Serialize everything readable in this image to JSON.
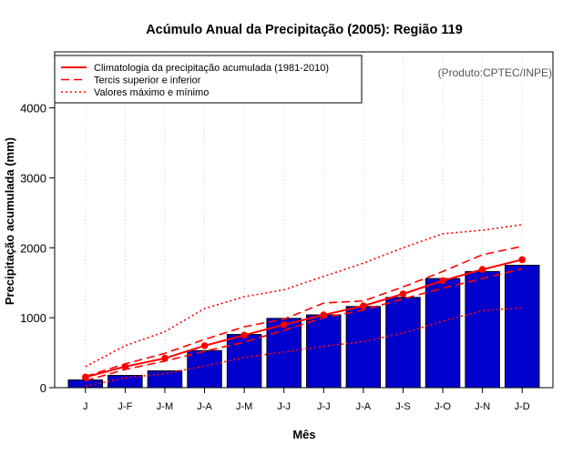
{
  "chart_data": {
    "type": "bar",
    "title": "Acúmulo Anual da Precipitação (2005): Região 119",
    "credit": "(Produto:CPTEC/INPE)",
    "xlabel": "Mês",
    "ylabel": "Precipitação acumulada (mm)",
    "ylim": [
      0,
      4800
    ],
    "yticks": [
      0,
      1000,
      2000,
      3000,
      4000
    ],
    "grid": true,
    "legend_position": "top-left",
    "categories": [
      "J",
      "J-F",
      "J-M",
      "J-A",
      "J-M",
      "J-J",
      "J-J",
      "J-A",
      "J-S",
      "J-O",
      "J-N",
      "J-D"
    ],
    "values": [
      110,
      175,
      240,
      530,
      760,
      990,
      1040,
      1160,
      1290,
      1560,
      1660,
      1750
    ],
    "bar_color": "#0000cc",
    "series": [
      {
        "name": "Climatologia da precipitação acumulada (1981-2010)",
        "style": "solid",
        "color": "#ff0000",
        "markers": true,
        "values": [
          150,
          300,
          420,
          600,
          750,
          900,
          1040,
          1170,
          1340,
          1530,
          1690,
          1830
        ]
      },
      {
        "name": "Tercis superior e inferior",
        "style": "dashed",
        "color": "#ff0000",
        "values": [
          160,
          340,
          490,
          690,
          870,
          980,
          1210,
          1240,
          1440,
          1660,
          1900,
          2020
        ]
      },
      {
        "name": "Tercis superior e inferior (inferior)",
        "style": "dashed",
        "color": "#ff0000",
        "in_legend": false,
        "values": [
          100,
          260,
          380,
          520,
          650,
          820,
          1000,
          1110,
          1270,
          1420,
          1560,
          1700
        ]
      },
      {
        "name": "Valores máximo e mínimo",
        "style": "dotted",
        "color": "#ff0000",
        "values": [
          300,
          600,
          800,
          1130,
          1300,
          1400,
          1590,
          1780,
          2000,
          2200,
          2250,
          2330
        ]
      },
      {
        "name": "Valores máximo e mínimo (mínimo)",
        "style": "dotted",
        "color": "#ff0000",
        "in_legend": false,
        "values": [
          20,
          140,
          200,
          310,
          430,
          510,
          590,
          660,
          780,
          950,
          1100,
          1140
        ]
      }
    ],
    "legend": [
      {
        "label": "Climatologia da precipitação acumulada (1981-2010)",
        "style": "solid"
      },
      {
        "label": "Tercis superior e inferior",
        "style": "dashed"
      },
      {
        "label": "Valores máximo e mínimo",
        "style": "dotted"
      }
    ]
  }
}
